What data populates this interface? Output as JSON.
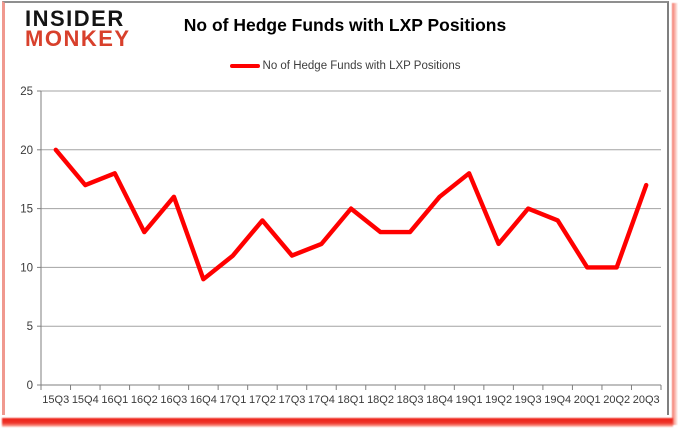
{
  "logo": {
    "line1": "INSIDER",
    "line2": "MONKEY"
  },
  "header": {
    "title": "No of Hedge Funds with LXP Positions"
  },
  "legend": {
    "label": "No of Hedge Funds with LXP Positions",
    "swatch_color": "#ff0000"
  },
  "chart_data": {
    "type": "line",
    "title": "No of Hedge Funds with LXP Positions",
    "categories": [
      "15Q3",
      "15Q4",
      "16Q1",
      "16Q2",
      "16Q3",
      "16Q4",
      "17Q1",
      "17Q2",
      "17Q3",
      "17Q4",
      "18Q1",
      "18Q2",
      "18Q3",
      "18Q4",
      "19Q1",
      "19Q2",
      "19Q3",
      "19Q4",
      "20Q1",
      "20Q2",
      "20Q3"
    ],
    "series": [
      {
        "name": "No of Hedge Funds with LXP Positions",
        "color": "#ff0000",
        "values": [
          20,
          17,
          18,
          13,
          16,
          9,
          11,
          14,
          11,
          12,
          15,
          13,
          13,
          16,
          18,
          12,
          15,
          14,
          10,
          10,
          17
        ]
      }
    ],
    "xlabel": "",
    "ylabel": "",
    "ylim": [
      0,
      25
    ],
    "yticks": [
      0,
      5,
      10,
      15,
      20,
      25
    ],
    "grid": "horizontal",
    "legend_position": "top"
  },
  "colors": {
    "line": "#ff0000",
    "gridline": "#a3a3a3",
    "axis": "#7f7f7f",
    "tick_label": "#3a3a3a",
    "title": "#000000",
    "logo_black": "#141414",
    "logo_red": "#d8402c",
    "border_red": "#ec1f15",
    "border_pink": "#f0998f",
    "border_gray": "#8f8f8f"
  }
}
